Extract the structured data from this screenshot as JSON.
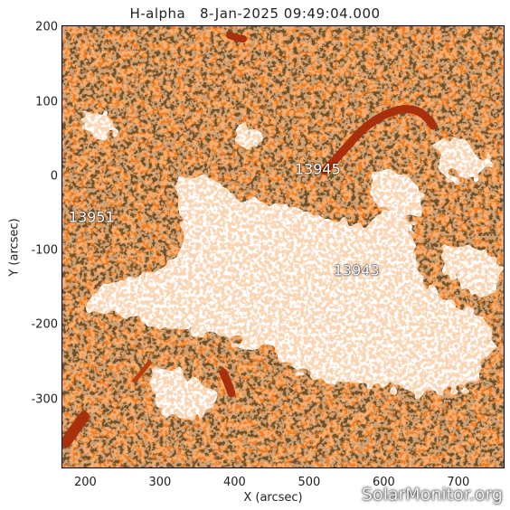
{
  "title": "H-alpha   8-Jan-2025 09:49:04.000",
  "x_axis": {
    "label": "X (arcsec)",
    "ticks": [
      "200",
      "300",
      "400",
      "500",
      "600",
      "700"
    ],
    "tick_values": [
      200,
      300,
      400,
      500,
      600,
      700
    ],
    "range": [
      168,
      762
    ]
  },
  "y_axis": {
    "label": "Y (arcsec)",
    "ticks": [
      "200",
      "100",
      "0",
      "-100",
      "-200",
      "-300"
    ],
    "tick_values": [
      200,
      100,
      0,
      -100,
      -200,
      -300
    ],
    "range": [
      -393,
      203
    ]
  },
  "regions": [
    {
      "label": "13945",
      "x": 483,
      "y": 10
    },
    {
      "label": "13951",
      "x": 180,
      "y": -55
    },
    {
      "label": "13943",
      "x": 535,
      "y": -127
    }
  ],
  "watermark": "SolarMonitor.org",
  "colors": {
    "background": "#f07f24",
    "dark_mottle": "#2a1404",
    "plage": "#ffffff",
    "filament": "#a8300c"
  }
}
